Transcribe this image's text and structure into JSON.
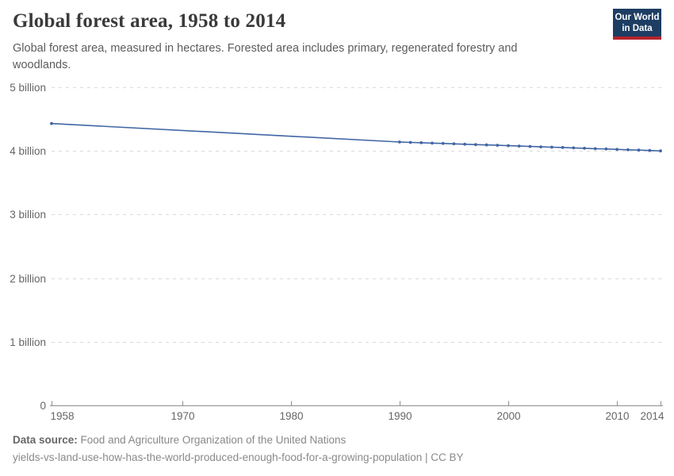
{
  "header": {
    "title": "Global forest area, 1958 to 2014",
    "subtitle": "Global forest area, measured in hectares. Forested area includes primary, regenerated forestry and woodlands.",
    "logo": {
      "line1": "Our World",
      "line2": "in Data",
      "bg_color": "#1d3d63",
      "accent_color": "#b5232d"
    }
  },
  "chart_data": {
    "type": "line",
    "title": "Global forest area, 1958 to 2014",
    "xlabel": "",
    "ylabel": "",
    "unit": "hectares",
    "values_in": "billion hectares",
    "xlim": [
      1958,
      2014
    ],
    "ylim": [
      0,
      5
    ],
    "grid": "horizontal-dashed",
    "legend": "none",
    "colors": {
      "line": "#4266a5",
      "gridline": "#dadada",
      "axis": "#8f8f8f",
      "tick_text": "#666666"
    },
    "y_ticks": [
      {
        "value": 0,
        "label": "0"
      },
      {
        "value": 1,
        "label": "1 billion"
      },
      {
        "value": 2,
        "label": "2 billion"
      },
      {
        "value": 3,
        "label": "3 billion"
      },
      {
        "value": 4,
        "label": "4 billion"
      },
      {
        "value": 5,
        "label": "5 billion"
      }
    ],
    "x_ticks": [
      {
        "value": 1958,
        "label": "1958"
      },
      {
        "value": 1970,
        "label": "1970"
      },
      {
        "value": 1980,
        "label": "1980"
      },
      {
        "value": 1990,
        "label": "1990"
      },
      {
        "value": 2000,
        "label": "2000"
      },
      {
        "value": 2010,
        "label": "2010"
      },
      {
        "value": 2014,
        "label": "2014"
      }
    ],
    "series": [
      {
        "name": "Global forest area",
        "color": "#4266a5",
        "points": [
          [
            1958,
            4.43
          ],
          [
            1990,
            4.14
          ],
          [
            1991,
            4.134
          ],
          [
            1992,
            4.128
          ],
          [
            1993,
            4.122
          ],
          [
            1994,
            4.117
          ],
          [
            1995,
            4.111
          ],
          [
            1996,
            4.105
          ],
          [
            1997,
            4.099
          ],
          [
            1998,
            4.093
          ],
          [
            1999,
            4.088
          ],
          [
            2000,
            4.082
          ],
          [
            2001,
            4.076
          ],
          [
            2002,
            4.07
          ],
          [
            2003,
            4.064
          ],
          [
            2004,
            4.059
          ],
          [
            2005,
            4.053
          ],
          [
            2006,
            4.047
          ],
          [
            2007,
            4.041
          ],
          [
            2008,
            4.035
          ],
          [
            2009,
            4.03
          ],
          [
            2010,
            4.024
          ],
          [
            2011,
            4.018
          ],
          [
            2012,
            4.012
          ],
          [
            2013,
            4.006
          ],
          [
            2014,
            4.0
          ]
        ]
      }
    ]
  },
  "footer": {
    "source_label": "Data source:",
    "source_text": "Food and Agriculture Organization of the United Nations",
    "note": "yields-vs-land-use-how-has-the-world-produced-enough-food-for-a-growing-population | CC BY"
  }
}
